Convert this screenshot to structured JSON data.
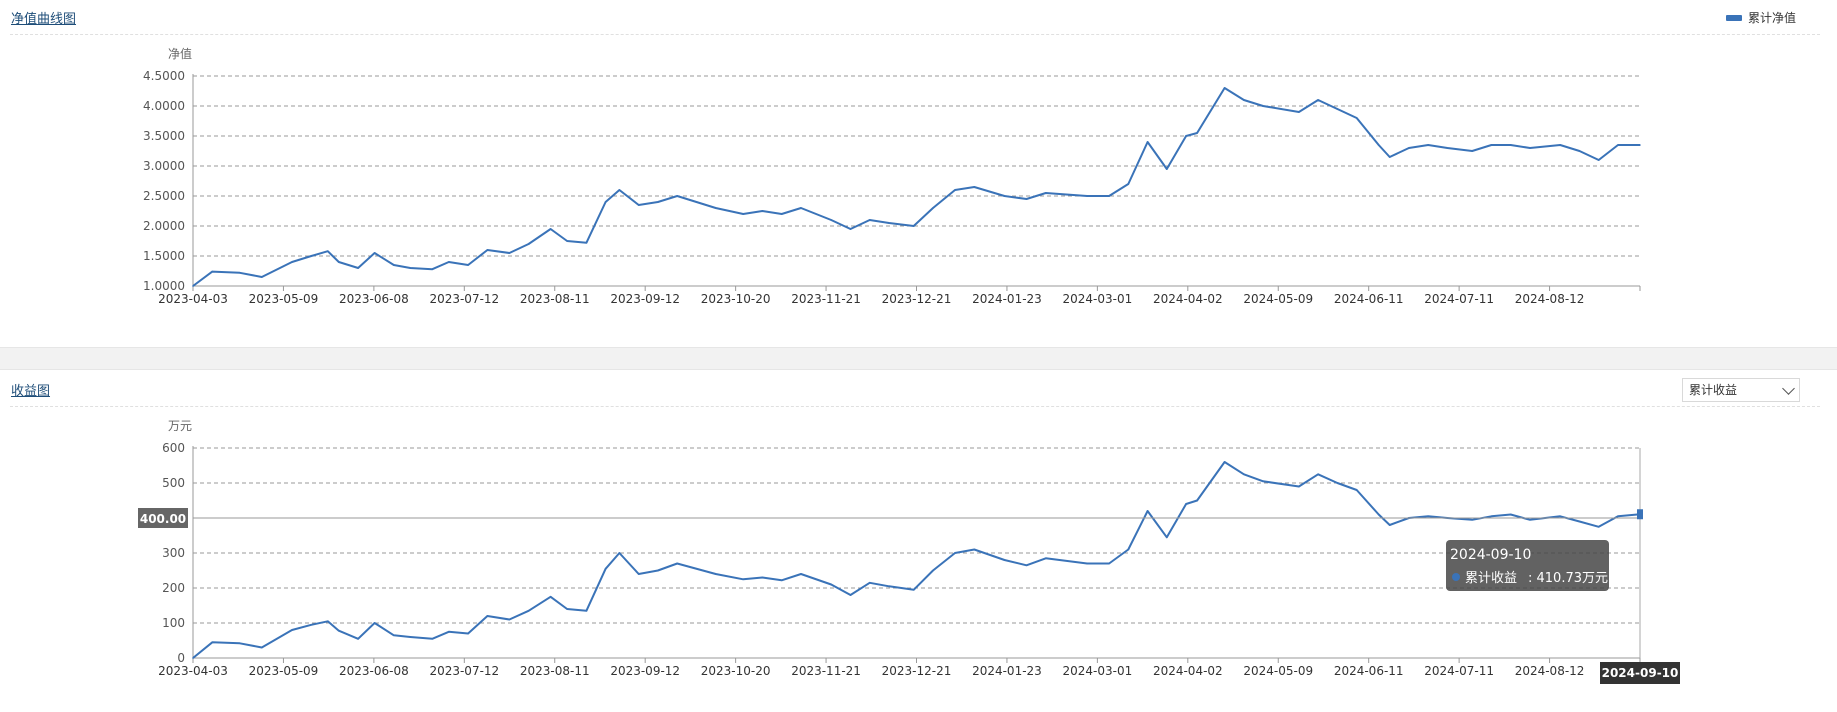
{
  "nav_chart": {
    "title": "净值曲线图",
    "legend_label": "累计净值",
    "legend_color": "#3a73b8"
  },
  "income_chart": {
    "title": "收益图",
    "select_value": "累计收益",
    "axis_pointer_y": "400.00",
    "axis_pointer_x": "2024-09-10",
    "tooltip": {
      "date": "2024-09-10",
      "series_label": "累计收益",
      "value_text": "410.73万元"
    }
  },
  "chart_data": [
    {
      "type": "line",
      "title": "净值曲线图",
      "ylabel": "净值",
      "ylim": [
        1.0,
        4.5
      ],
      "yticks": [
        "1.0000",
        "1.5000",
        "2.0000",
        "2.5000",
        "3.0000",
        "3.5000",
        "4.0000",
        "4.5000"
      ],
      "xticks": [
        "2023-04-03",
        "2023-05-09",
        "2023-06-08",
        "2023-07-12",
        "2023-08-11",
        "2023-09-12",
        "2023-10-20",
        "2023-11-21",
        "2023-12-21",
        "2024-01-23",
        "2024-03-01",
        "2024-04-02",
        "2024-05-09",
        "2024-06-11",
        "2024-07-11",
        "2024-08-12"
      ],
      "grid": true,
      "legend_placement": "top-right",
      "series": [
        {
          "name": "累计净值",
          "color": "#3a73b8",
          "x": [
            "2023-04-03",
            "2023-04-10",
            "2023-04-20",
            "2023-04-28",
            "2023-05-09",
            "2023-05-16",
            "2023-05-22",
            "2023-05-26",
            "2023-06-02",
            "2023-06-08",
            "2023-06-15",
            "2023-06-21",
            "2023-06-29",
            "2023-07-05",
            "2023-07-12",
            "2023-07-19",
            "2023-07-27",
            "2023-08-03",
            "2023-08-11",
            "2023-08-17",
            "2023-08-24",
            "2023-08-31",
            "2023-09-05",
            "2023-09-12",
            "2023-09-19",
            "2023-09-26",
            "2023-10-10",
            "2023-10-20",
            "2023-10-27",
            "2023-11-03",
            "2023-11-10",
            "2023-11-21",
            "2023-11-28",
            "2023-12-05",
            "2023-12-12",
            "2023-12-21",
            "2023-12-28",
            "2024-01-05",
            "2024-01-12",
            "2024-01-23",
            "2024-01-31",
            "2024-02-07",
            "2024-02-22",
            "2024-03-01",
            "2024-03-08",
            "2024-03-15",
            "2024-03-22",
            "2024-03-29",
            "2024-04-02",
            "2024-04-12",
            "2024-04-19",
            "2024-04-26",
            "2024-05-09",
            "2024-05-16",
            "2024-05-23",
            "2024-05-30",
            "2024-06-07",
            "2024-06-11",
            "2024-06-18",
            "2024-06-25",
            "2024-07-02",
            "2024-07-11",
            "2024-07-18",
            "2024-07-25",
            "2024-08-01",
            "2024-08-12",
            "2024-08-19",
            "2024-08-26",
            "2024-09-02",
            "2024-09-10"
          ],
          "values": [
            1.0,
            1.24,
            1.22,
            1.15,
            1.4,
            1.5,
            1.58,
            1.4,
            1.3,
            1.55,
            1.35,
            1.3,
            1.28,
            1.4,
            1.35,
            1.6,
            1.55,
            1.7,
            1.95,
            1.75,
            1.72,
            2.4,
            2.6,
            2.35,
            2.4,
            2.5,
            2.3,
            2.2,
            2.25,
            2.2,
            2.3,
            2.1,
            1.95,
            2.1,
            2.05,
            2.0,
            2.3,
            2.6,
            2.65,
            2.5,
            2.45,
            2.55,
            2.5,
            2.5,
            2.7,
            3.4,
            2.95,
            3.5,
            3.55,
            4.3,
            4.1,
            4.0,
            3.9,
            4.1,
            3.95,
            3.8,
            3.35,
            3.15,
            3.3,
            3.35,
            3.3,
            3.25,
            3.35,
            3.35,
            3.3,
            3.35,
            3.25,
            3.1,
            3.35,
            3.35
          ]
        }
      ]
    },
    {
      "type": "line",
      "title": "收益图",
      "ylabel": "万元",
      "ylim": [
        0,
        600
      ],
      "yticks": [
        "0",
        "100",
        "200",
        "300",
        "400",
        "500",
        "600"
      ],
      "xticks": [
        "2023-04-03",
        "2023-05-09",
        "2023-06-08",
        "2023-07-12",
        "2023-08-11",
        "2023-09-12",
        "2023-10-20",
        "2023-11-21",
        "2023-12-21",
        "2024-01-23",
        "2024-03-01",
        "2024-04-02",
        "2024-05-09",
        "2024-06-11",
        "2024-07-11",
        "2024-08-12"
      ],
      "grid": true,
      "series": [
        {
          "name": "累计收益",
          "color": "#3a73b8",
          "x": [
            "2023-04-03",
            "2023-04-10",
            "2023-04-20",
            "2023-04-28",
            "2023-05-09",
            "2023-05-16",
            "2023-05-22",
            "2023-05-26",
            "2023-06-02",
            "2023-06-08",
            "2023-06-15",
            "2023-06-21",
            "2023-06-29",
            "2023-07-05",
            "2023-07-12",
            "2023-07-19",
            "2023-07-27",
            "2023-08-03",
            "2023-08-11",
            "2023-08-17",
            "2023-08-24",
            "2023-08-31",
            "2023-09-05",
            "2023-09-12",
            "2023-09-19",
            "2023-09-26",
            "2023-10-10",
            "2023-10-20",
            "2023-10-27",
            "2023-11-03",
            "2023-11-10",
            "2023-11-21",
            "2023-11-28",
            "2023-12-05",
            "2023-12-12",
            "2023-12-21",
            "2023-12-28",
            "2024-01-05",
            "2024-01-12",
            "2024-01-23",
            "2024-01-31",
            "2024-02-07",
            "2024-02-22",
            "2024-03-01",
            "2024-03-08",
            "2024-03-15",
            "2024-03-22",
            "2024-03-29",
            "2024-04-02",
            "2024-04-12",
            "2024-04-19",
            "2024-04-26",
            "2024-05-09",
            "2024-05-16",
            "2024-05-23",
            "2024-05-30",
            "2024-06-07",
            "2024-06-11",
            "2024-06-18",
            "2024-06-25",
            "2024-07-02",
            "2024-07-11",
            "2024-07-18",
            "2024-07-25",
            "2024-08-01",
            "2024-08-12",
            "2024-08-19",
            "2024-08-26",
            "2024-09-02",
            "2024-09-10"
          ],
          "values": [
            0,
            45,
            42,
            30,
            80,
            95,
            105,
            78,
            55,
            100,
            65,
            60,
            55,
            75,
            70,
            120,
            110,
            135,
            175,
            140,
            135,
            255,
            300,
            240,
            250,
            270,
            240,
            225,
            230,
            222,
            240,
            210,
            180,
            215,
            205,
            195,
            250,
            300,
            310,
            280,
            265,
            285,
            270,
            270,
            310,
            420,
            345,
            440,
            450,
            560,
            525,
            505,
            490,
            525,
            500,
            480,
            410,
            380,
            400,
            405,
            400,
            395,
            405,
            410,
            395,
            405,
            390,
            375,
            405,
            410.73
          ]
        }
      ]
    }
  ]
}
